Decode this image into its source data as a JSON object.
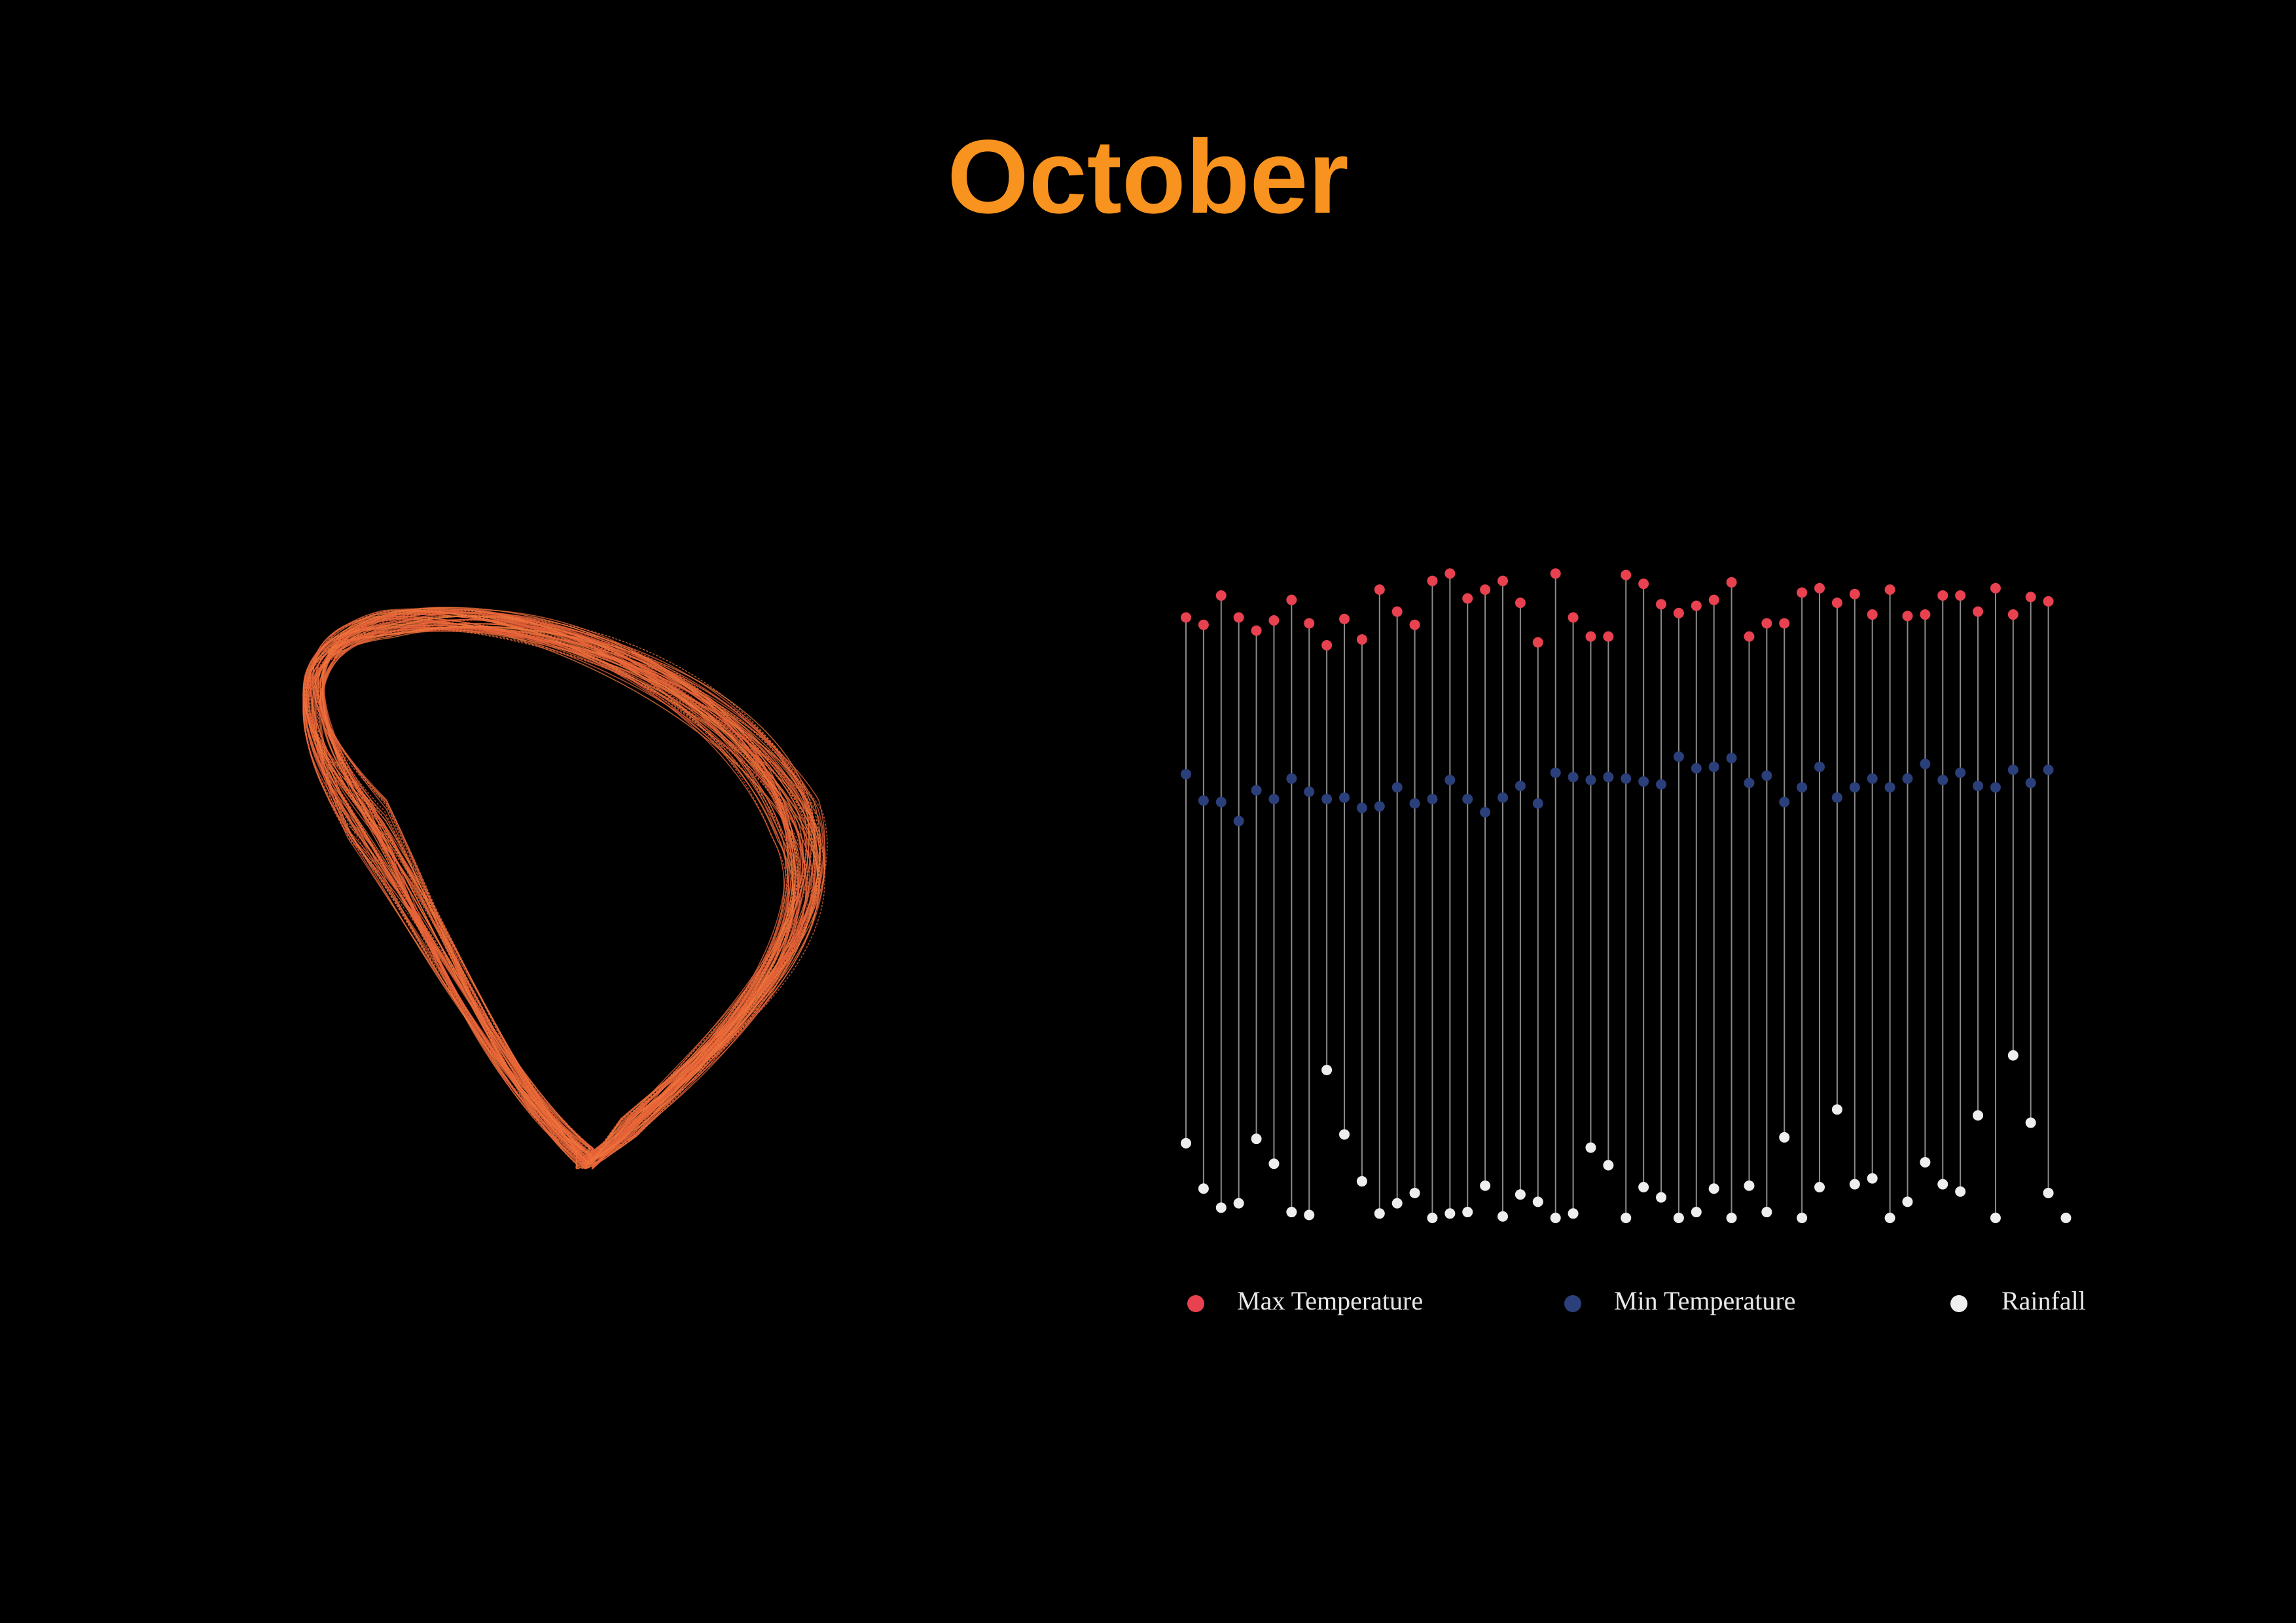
{
  "chart_data": {
    "type": "dot",
    "title": "October",
    "ylim": [
      0,
      45
    ],
    "series": [
      {
        "name": "Max Temperature",
        "color": "#e8414f",
        "values": [
          41.0,
          40.5,
          42.5,
          41.0,
          40.1,
          40.8,
          42.2,
          40.6,
          39.1,
          40.9,
          39.5,
          42.9,
          41.4,
          40.5,
          43.5,
          44.0,
          42.3,
          42.9,
          43.5,
          42.0,
          39.3,
          44.0,
          41.0,
          39.7,
          39.7,
          43.9,
          43.3,
          41.9,
          41.3,
          41.8,
          42.2,
          43.4,
          39.7,
          40.6,
          40.6,
          42.7,
          43.0,
          42.0,
          42.6,
          41.2,
          42.9,
          41.1,
          41.2,
          42.5,
          42.5,
          41.4,
          43.0,
          41.2,
          42.4,
          42.1,
          null
        ]
      },
      {
        "name": "Min Temperature",
        "color": "#2b3f7a",
        "values": [
          30.3,
          28.5,
          28.4,
          27.1,
          29.2,
          28.6,
          30.0,
          29.1,
          28.6,
          28.7,
          28.0,
          28.1,
          29.4,
          28.3,
          28.6,
          29.9,
          28.6,
          27.7,
          28.7,
          29.5,
          28.3,
          30.4,
          30.1,
          29.9,
          30.1,
          30.0,
          29.8,
          29.6,
          31.5,
          30.7,
          30.8,
          31.4,
          29.7,
          30.2,
          28.4,
          29.4,
          30.8,
          28.7,
          29.4,
          30.0,
          29.4,
          30.0,
          31.0,
          29.9,
          30.4,
          29.5,
          29.4,
          30.6,
          29.7,
          30.6,
          null
        ]
      },
      {
        "name": "Rainfall",
        "color": "#eeeeee",
        "values": [
          5.1,
          2.0,
          0.7,
          1.0,
          5.4,
          3.7,
          0.4,
          0.2,
          10.1,
          5.7,
          2.5,
          0.3,
          1.0,
          1.7,
          0,
          0.3,
          0.4,
          2.2,
          0.1,
          1.6,
          1.1,
          0,
          0.3,
          4.8,
          3.6,
          0,
          2.1,
          1.4,
          0,
          0.4,
          2.0,
          0,
          2.2,
          0.4,
          5.5,
          0,
          2.1,
          7.4,
          2.3,
          2.7,
          0,
          1.1,
          3.8,
          2.3,
          1.8,
          7.0,
          0,
          11.1,
          6.5,
          1.7,
          0
        ]
      }
    ]
  }
}
